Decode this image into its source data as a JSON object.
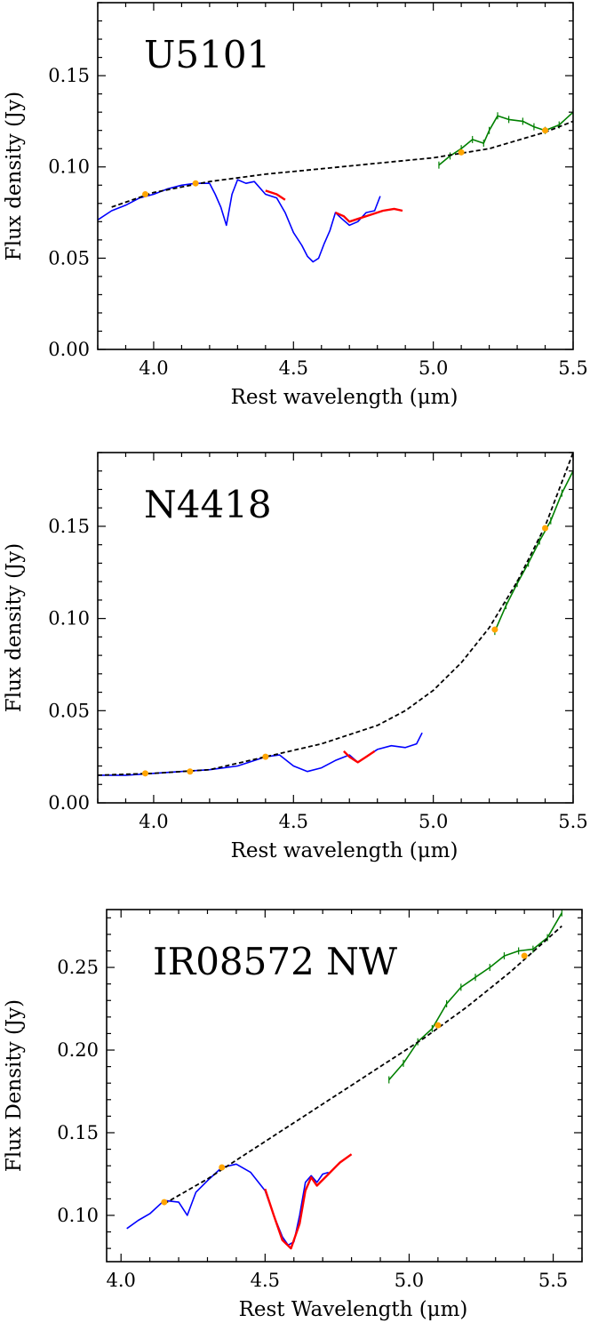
{
  "chart_data": [
    {
      "type": "line",
      "title": "U5101",
      "xlabel": "Rest wavelength (μm)",
      "ylabel": "Flux density (Jy)",
      "xlim": [
        3.8,
        5.5
      ],
      "ylim": [
        0.0,
        0.19
      ],
      "xticks": [
        4.0,
        4.5,
        5.0,
        5.5
      ],
      "xtick_labels": [
        "4.0",
        "4.5",
        "5.0",
        "5.5"
      ],
      "yticks": [
        0.0,
        0.05,
        0.1,
        0.15
      ],
      "ytick_labels": [
        "0.00",
        "0.05",
        "0.10",
        "0.15"
      ],
      "series": [
        {
          "color": "#0000ff",
          "x": [
            3.8,
            3.85,
            3.9,
            3.95,
            4.0,
            4.05,
            4.1,
            4.15,
            4.2,
            4.22,
            4.24,
            4.26,
            4.28,
            4.3,
            4.33,
            4.36,
            4.4,
            4.44,
            4.47,
            4.5,
            4.53,
            4.55,
            4.57,
            4.59,
            4.61,
            4.63,
            4.65,
            4.67,
            4.7,
            4.73,
            4.76,
            4.79,
            4.81
          ],
          "y": [
            0.071,
            0.076,
            0.079,
            0.083,
            0.085,
            0.088,
            0.09,
            0.091,
            0.091,
            0.085,
            0.078,
            0.068,
            0.085,
            0.093,
            0.091,
            0.092,
            0.085,
            0.083,
            0.075,
            0.064,
            0.057,
            0.051,
            0.048,
            0.05,
            0.058,
            0.065,
            0.075,
            0.072,
            0.068,
            0.07,
            0.075,
            0.076,
            0.084
          ]
        },
        {
          "color": "#ff0000",
          "x": [
            4.4,
            4.44,
            4.47
          ],
          "y": [
            0.087,
            0.085,
            0.082
          ]
        },
        {
          "color": "#ff0000",
          "x": [
            4.65,
            4.68,
            4.7,
            4.74,
            4.78,
            4.82,
            4.86,
            4.89
          ],
          "y": [
            0.075,
            0.073,
            0.07,
            0.072,
            0.074,
            0.076,
            0.077,
            0.076
          ]
        },
        {
          "color": "#008000",
          "x": [
            5.02,
            5.06,
            5.1,
            5.14,
            5.18,
            5.2,
            5.23,
            5.27,
            5.32,
            5.36,
            5.4,
            5.45,
            5.5
          ],
          "y": [
            0.101,
            0.106,
            0.11,
            0.115,
            0.113,
            0.12,
            0.128,
            0.126,
            0.125,
            0.122,
            0.12,
            0.123,
            0.13
          ]
        },
        {
          "color": "#000000",
          "dashed": true,
          "x": [
            3.85,
            4.0,
            4.2,
            4.4,
            4.6,
            4.8,
            5.0,
            5.2,
            5.4,
            5.5
          ],
          "y": [
            0.078,
            0.086,
            0.092,
            0.096,
            0.099,
            0.102,
            0.105,
            0.11,
            0.119,
            0.125
          ]
        }
      ],
      "markers": {
        "color": "#ffa500",
        "x": [
          3.97,
          4.15,
          5.1,
          5.4
        ],
        "y": [
          0.085,
          0.091,
          0.108,
          0.12
        ]
      }
    },
    {
      "type": "line",
      "title": "N4418",
      "xlabel": "Rest wavelength (μm)",
      "ylabel": "Flux density (Jy)",
      "xlim": [
        3.8,
        5.5
      ],
      "ylim": [
        0.0,
        0.19
      ],
      "xticks": [
        4.0,
        4.5,
        5.0,
        5.5
      ],
      "xtick_labels": [
        "4.0",
        "4.5",
        "5.0",
        "5.5"
      ],
      "yticks": [
        0.0,
        0.05,
        0.1,
        0.15
      ],
      "ytick_labels": [
        "0.00",
        "0.05",
        "0.10",
        "0.15"
      ],
      "series": [
        {
          "color": "#0000ff",
          "x": [
            3.8,
            3.9,
            4.0,
            4.1,
            4.2,
            4.3,
            4.4,
            4.45,
            4.5,
            4.55,
            4.6,
            4.65,
            4.7,
            4.73,
            4.76,
            4.8,
            4.85,
            4.9,
            4.94,
            4.96
          ],
          "y": [
            0.015,
            0.015,
            0.016,
            0.017,
            0.018,
            0.02,
            0.025,
            0.026,
            0.02,
            0.017,
            0.019,
            0.023,
            0.026,
            0.022,
            0.025,
            0.029,
            0.031,
            0.03,
            0.032,
            0.038
          ]
        },
        {
          "color": "#ff0000",
          "x": [
            4.68,
            4.7,
            4.73,
            4.76,
            4.79
          ],
          "y": [
            0.028,
            0.025,
            0.022,
            0.025,
            0.028
          ]
        },
        {
          "color": "#008000",
          "x": [
            5.22,
            5.26,
            5.3,
            5.34,
            5.38,
            5.42,
            5.46,
            5.5
          ],
          "y": [
            0.093,
            0.107,
            0.119,
            0.13,
            0.142,
            0.153,
            0.168,
            0.18
          ]
        },
        {
          "color": "#000000",
          "dashed": true,
          "x": [
            3.8,
            4.0,
            4.2,
            4.4,
            4.6,
            4.8,
            4.9,
            5.0,
            5.1,
            5.2,
            5.3,
            5.4,
            5.5
          ],
          "y": [
            0.015,
            0.016,
            0.018,
            0.025,
            0.032,
            0.042,
            0.05,
            0.061,
            0.076,
            0.095,
            0.12,
            0.15,
            0.19
          ]
        }
      ],
      "markers": {
        "color": "#ffa500",
        "x": [
          3.97,
          4.13,
          4.4,
          5.22,
          5.4
        ],
        "y": [
          0.016,
          0.017,
          0.025,
          0.094,
          0.149
        ]
      }
    },
    {
      "type": "line",
      "title": "IR08572 NW",
      "xlabel": "Rest Wavelength (μm)",
      "ylabel": "Flux Density (Jy)",
      "xlim": [
        3.95,
        5.6
      ],
      "ylim": [
        0.072,
        0.285
      ],
      "xticks": [
        4.0,
        4.5,
        5.0,
        5.5
      ],
      "xtick_labels": [
        "4.0",
        "4.5",
        "5.0",
        "5.5"
      ],
      "yticks": [
        0.1,
        0.15,
        0.2,
        0.25
      ],
      "ytick_labels": [
        "0.10",
        "0.15",
        "0.20",
        "0.25"
      ],
      "series": [
        {
          "color": "#0000ff",
          "x": [
            4.02,
            4.06,
            4.1,
            4.15,
            4.2,
            4.23,
            4.26,
            4.3,
            4.35,
            4.4,
            4.45,
            4.5,
            4.53,
            4.56,
            4.58,
            4.6,
            4.62,
            4.64,
            4.66,
            4.68,
            4.7,
            4.72
          ],
          "y": [
            0.092,
            0.097,
            0.101,
            0.109,
            0.108,
            0.1,
            0.114,
            0.121,
            0.129,
            0.131,
            0.126,
            0.115,
            0.1,
            0.087,
            0.082,
            0.084,
            0.1,
            0.12,
            0.124,
            0.12,
            0.125,
            0.126
          ]
        },
        {
          "color": "#ff0000",
          "x": [
            4.5,
            4.53,
            4.56,
            4.59,
            4.62,
            4.64,
            4.66,
            4.68,
            4.72,
            4.76,
            4.8
          ],
          "y": [
            0.116,
            0.1,
            0.085,
            0.08,
            0.095,
            0.115,
            0.123,
            0.118,
            0.125,
            0.132,
            0.137
          ]
        },
        {
          "color": "#008000",
          "x": [
            4.93,
            4.98,
            5.03,
            5.08,
            5.13,
            5.18,
            5.23,
            5.28,
            5.33,
            5.38,
            5.43,
            5.48,
            5.53
          ],
          "y": [
            0.182,
            0.192,
            0.205,
            0.213,
            0.228,
            0.238,
            0.244,
            0.25,
            0.257,
            0.26,
            0.261,
            0.268,
            0.283
          ]
        },
        {
          "color": "#000000",
          "dashed": true,
          "x": [
            4.15,
            4.3,
            4.45,
            4.6,
            4.75,
            4.9,
            5.05,
            5.2,
            5.35,
            5.53
          ],
          "y": [
            0.107,
            0.122,
            0.139,
            0.156,
            0.173,
            0.19,
            0.207,
            0.226,
            0.247,
            0.275
          ]
        }
      ],
      "markers": {
        "color": "#ffa500",
        "x": [
          4.15,
          4.35,
          5.1,
          5.4
        ],
        "y": [
          0.108,
          0.129,
          0.215,
          0.257
        ]
      }
    }
  ]
}
